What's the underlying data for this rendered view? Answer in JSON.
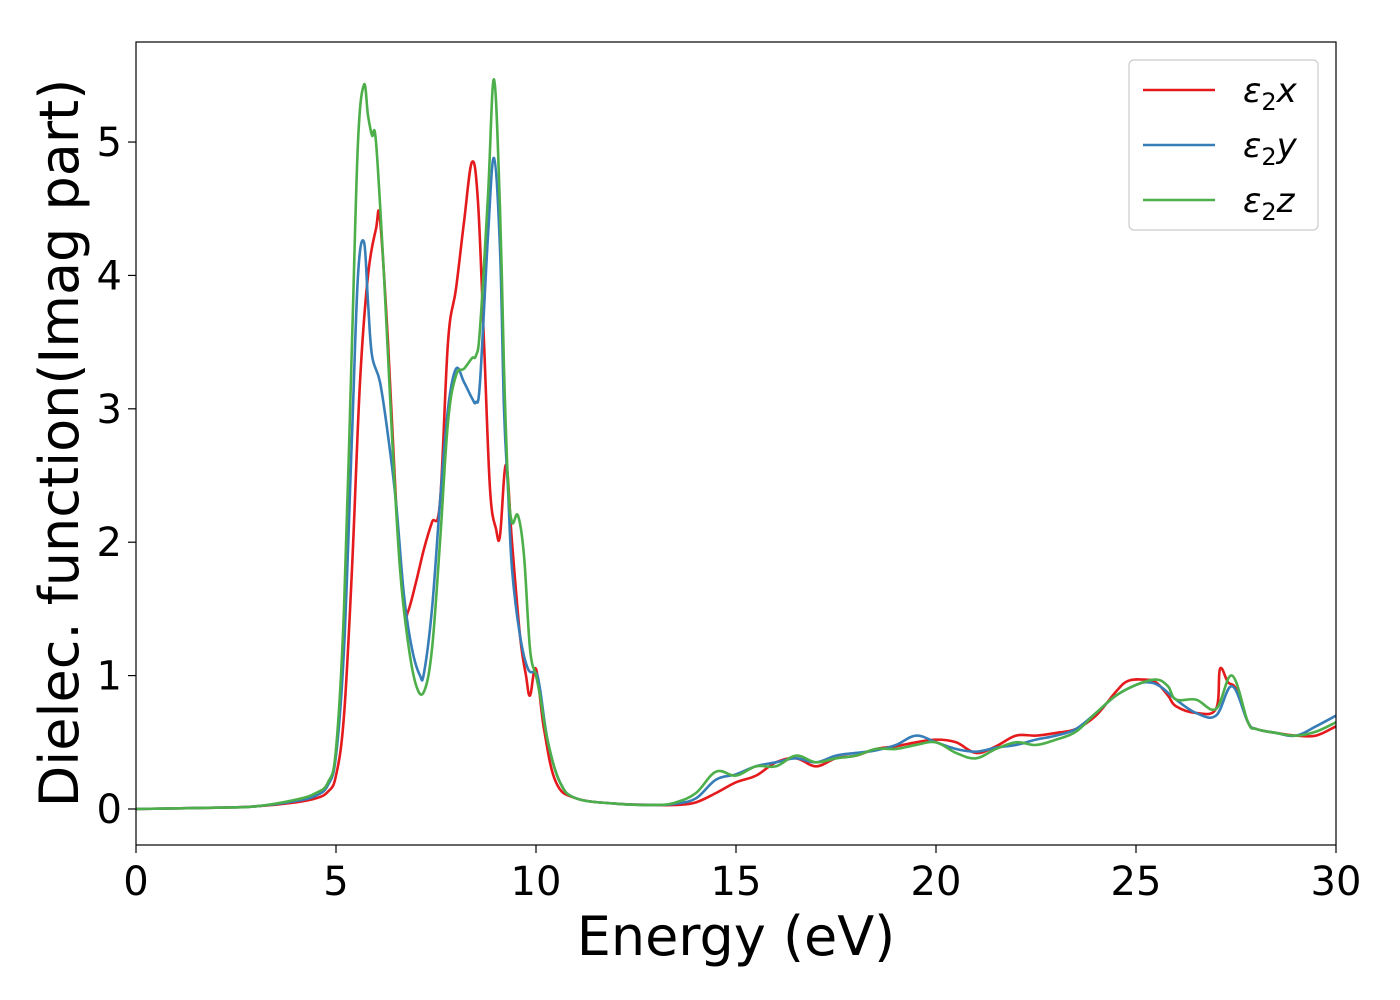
{
  "chart_data": {
    "type": "line",
    "xlabel": "Energy (eV)",
    "ylabel": "Dielec. function(Imag part)",
    "xlim": [
      0,
      30
    ],
    "ylim": [
      -0.27,
      5.75
    ],
    "xticks": [
      "0",
      "5",
      "10",
      "15",
      "20",
      "25",
      "30"
    ],
    "yticks": [
      "0",
      "1",
      "2",
      "3",
      "4",
      "5"
    ],
    "grid": false,
    "legend_position": "top-right",
    "series": [
      {
        "name": "ε2x",
        "legend": {
          "base": "ε",
          "sub": "2",
          "suffix": "x"
        },
        "color": "#e41a1c",
        "points": [
          [
            0,
            0
          ],
          [
            2,
            0.01
          ],
          [
            3,
            0.02
          ],
          [
            4,
            0.05
          ],
          [
            4.5,
            0.08
          ],
          [
            4.8,
            0.13
          ],
          [
            5.0,
            0.25
          ],
          [
            5.2,
            0.7
          ],
          [
            5.4,
            1.8
          ],
          [
            5.6,
            3.2
          ],
          [
            5.8,
            4.0
          ],
          [
            6.0,
            4.35
          ],
          [
            6.1,
            4.42
          ],
          [
            6.3,
            3.5
          ],
          [
            6.5,
            2.3
          ],
          [
            6.7,
            1.5
          ],
          [
            6.8,
            1.48
          ],
          [
            7.0,
            1.7
          ],
          [
            7.2,
            1.95
          ],
          [
            7.4,
            2.15
          ],
          [
            7.6,
            2.3
          ],
          [
            7.8,
            3.5
          ],
          [
            8.0,
            3.9
          ],
          [
            8.2,
            4.4
          ],
          [
            8.4,
            4.85
          ],
          [
            8.55,
            4.55
          ],
          [
            8.7,
            3.5
          ],
          [
            8.85,
            2.4
          ],
          [
            9.0,
            2.1
          ],
          [
            9.1,
            2.05
          ],
          [
            9.25,
            2.58
          ],
          [
            9.4,
            2.0
          ],
          [
            9.6,
            1.3
          ],
          [
            9.75,
            1.0
          ],
          [
            9.85,
            0.85
          ],
          [
            10.0,
            1.05
          ],
          [
            10.2,
            0.6
          ],
          [
            10.5,
            0.2
          ],
          [
            11,
            0.08
          ],
          [
            12,
            0.04
          ],
          [
            13,
            0.03
          ],
          [
            13.5,
            0.03
          ],
          [
            14,
            0.05
          ],
          [
            14.5,
            0.12
          ],
          [
            15,
            0.2
          ],
          [
            15.5,
            0.25
          ],
          [
            16,
            0.35
          ],
          [
            16.5,
            0.38
          ],
          [
            17,
            0.32
          ],
          [
            17.5,
            0.38
          ],
          [
            18,
            0.4
          ],
          [
            18.5,
            0.45
          ],
          [
            19,
            0.47
          ],
          [
            19.5,
            0.5
          ],
          [
            20,
            0.52
          ],
          [
            20.5,
            0.5
          ],
          [
            21,
            0.42
          ],
          [
            21.5,
            0.47
          ],
          [
            22,
            0.55
          ],
          [
            22.5,
            0.55
          ],
          [
            23,
            0.57
          ],
          [
            23.5,
            0.6
          ],
          [
            24,
            0.7
          ],
          [
            24.5,
            0.88
          ],
          [
            24.8,
            0.96
          ],
          [
            25.2,
            0.97
          ],
          [
            25.5,
            0.95
          ],
          [
            25.8,
            0.85
          ],
          [
            26,
            0.77
          ],
          [
            26.5,
            0.72
          ],
          [
            27,
            0.75
          ],
          [
            27.1,
            1.05
          ],
          [
            27.3,
            0.95
          ],
          [
            27.5,
            0.9
          ],
          [
            27.8,
            0.65
          ],
          [
            28,
            0.6
          ],
          [
            28.5,
            0.57
          ],
          [
            29,
            0.55
          ],
          [
            29.5,
            0.55
          ],
          [
            30,
            0.62
          ]
        ]
      },
      {
        "name": "ε2y",
        "legend": {
          "base": "ε",
          "sub": "2",
          "suffix": "y"
        },
        "color": "#377eb8",
        "points": [
          [
            0,
            0
          ],
          [
            2,
            0.01
          ],
          [
            3,
            0.02
          ],
          [
            4,
            0.06
          ],
          [
            4.5,
            0.1
          ],
          [
            4.8,
            0.18
          ],
          [
            5.0,
            0.4
          ],
          [
            5.2,
            1.2
          ],
          [
            5.4,
            2.8
          ],
          [
            5.55,
            4.0
          ],
          [
            5.7,
            4.25
          ],
          [
            5.8,
            3.8
          ],
          [
            5.9,
            3.4
          ],
          [
            6.1,
            3.2
          ],
          [
            6.3,
            2.8
          ],
          [
            6.5,
            2.3
          ],
          [
            6.7,
            1.6
          ],
          [
            6.9,
            1.2
          ],
          [
            7.1,
            1.0
          ],
          [
            7.2,
            1.02
          ],
          [
            7.4,
            1.5
          ],
          [
            7.6,
            2.3
          ],
          [
            7.8,
            3.0
          ],
          [
            8.0,
            3.3
          ],
          [
            8.2,
            3.2
          ],
          [
            8.4,
            3.08
          ],
          [
            8.5,
            3.05
          ],
          [
            8.6,
            3.2
          ],
          [
            8.8,
            4.3
          ],
          [
            8.95,
            4.88
          ],
          [
            9.1,
            4.2
          ],
          [
            9.2,
            3.0
          ],
          [
            9.3,
            2.4
          ],
          [
            9.4,
            1.8
          ],
          [
            9.6,
            1.3
          ],
          [
            9.8,
            1.05
          ],
          [
            10.0,
            1.02
          ],
          [
            10.1,
            0.9
          ],
          [
            10.3,
            0.5
          ],
          [
            10.6,
            0.2
          ],
          [
            11,
            0.08
          ],
          [
            12,
            0.04
          ],
          [
            13,
            0.03
          ],
          [
            13.5,
            0.04
          ],
          [
            14,
            0.08
          ],
          [
            14.5,
            0.22
          ],
          [
            15,
            0.26
          ],
          [
            15.5,
            0.32
          ],
          [
            16,
            0.35
          ],
          [
            16.5,
            0.38
          ],
          [
            17,
            0.35
          ],
          [
            17.5,
            0.4
          ],
          [
            18,
            0.42
          ],
          [
            18.5,
            0.44
          ],
          [
            19,
            0.48
          ],
          [
            19.5,
            0.55
          ],
          [
            20,
            0.5
          ],
          [
            20.5,
            0.45
          ],
          [
            21,
            0.43
          ],
          [
            21.5,
            0.46
          ],
          [
            22,
            0.48
          ],
          [
            22.5,
            0.52
          ],
          [
            23,
            0.55
          ],
          [
            23.5,
            0.6
          ],
          [
            24,
            0.72
          ],
          [
            24.5,
            0.85
          ],
          [
            25,
            0.93
          ],
          [
            25.3,
            0.95
          ],
          [
            25.6,
            0.92
          ],
          [
            26,
            0.82
          ],
          [
            26.5,
            0.72
          ],
          [
            27,
            0.7
          ],
          [
            27.4,
            0.92
          ],
          [
            27.8,
            0.65
          ],
          [
            28,
            0.6
          ],
          [
            28.5,
            0.57
          ],
          [
            29,
            0.55
          ],
          [
            29.5,
            0.62
          ],
          [
            30,
            0.7
          ]
        ]
      },
      {
        "name": "ε2z",
        "legend": {
          "base": "ε",
          "sub": "2",
          "suffix": "z"
        },
        "color": "#4daf4a",
        "points": [
          [
            0,
            0
          ],
          [
            2,
            0.01
          ],
          [
            3,
            0.02
          ],
          [
            4,
            0.07
          ],
          [
            4.5,
            0.12
          ],
          [
            4.8,
            0.2
          ],
          [
            5.0,
            0.45
          ],
          [
            5.2,
            1.5
          ],
          [
            5.4,
            3.5
          ],
          [
            5.55,
            5.0
          ],
          [
            5.7,
            5.43
          ],
          [
            5.8,
            5.2
          ],
          [
            5.9,
            5.05
          ],
          [
            6.0,
            5.0
          ],
          [
            6.2,
            4.0
          ],
          [
            6.4,
            2.8
          ],
          [
            6.6,
            1.8
          ],
          [
            6.8,
            1.25
          ],
          [
            7.0,
            0.93
          ],
          [
            7.2,
            0.88
          ],
          [
            7.4,
            1.2
          ],
          [
            7.6,
            2.0
          ],
          [
            7.8,
            2.9
          ],
          [
            8.0,
            3.25
          ],
          [
            8.2,
            3.3
          ],
          [
            8.4,
            3.38
          ],
          [
            8.5,
            3.4
          ],
          [
            8.6,
            3.6
          ],
          [
            8.8,
            4.6
          ],
          [
            8.95,
            5.47
          ],
          [
            9.1,
            4.5
          ],
          [
            9.2,
            3.3
          ],
          [
            9.3,
            2.45
          ],
          [
            9.4,
            2.15
          ],
          [
            9.55,
            2.2
          ],
          [
            9.7,
            1.9
          ],
          [
            9.85,
            1.2
          ],
          [
            10.0,
            1.0
          ],
          [
            10.1,
            0.85
          ],
          [
            10.3,
            0.5
          ],
          [
            10.6,
            0.2
          ],
          [
            11,
            0.08
          ],
          [
            12,
            0.04
          ],
          [
            13,
            0.03
          ],
          [
            13.5,
            0.05
          ],
          [
            14,
            0.12
          ],
          [
            14.5,
            0.28
          ],
          [
            15,
            0.25
          ],
          [
            15.5,
            0.32
          ],
          [
            16,
            0.32
          ],
          [
            16.5,
            0.4
          ],
          [
            17,
            0.35
          ],
          [
            17.5,
            0.38
          ],
          [
            18,
            0.4
          ],
          [
            18.5,
            0.45
          ],
          [
            19,
            0.45
          ],
          [
            19.5,
            0.48
          ],
          [
            20,
            0.5
          ],
          [
            20.5,
            0.42
          ],
          [
            21,
            0.38
          ],
          [
            21.5,
            0.45
          ],
          [
            22,
            0.5
          ],
          [
            22.5,
            0.48
          ],
          [
            23,
            0.52
          ],
          [
            23.5,
            0.58
          ],
          [
            24,
            0.72
          ],
          [
            24.5,
            0.85
          ],
          [
            25,
            0.93
          ],
          [
            25.5,
            0.97
          ],
          [
            25.8,
            0.92
          ],
          [
            26,
            0.82
          ],
          [
            26.5,
            0.82
          ],
          [
            27,
            0.75
          ],
          [
            27.4,
            1.0
          ],
          [
            27.8,
            0.65
          ],
          [
            28,
            0.6
          ],
          [
            28.5,
            0.57
          ],
          [
            29,
            0.55
          ],
          [
            29.5,
            0.58
          ],
          [
            30,
            0.65
          ]
        ]
      }
    ]
  }
}
